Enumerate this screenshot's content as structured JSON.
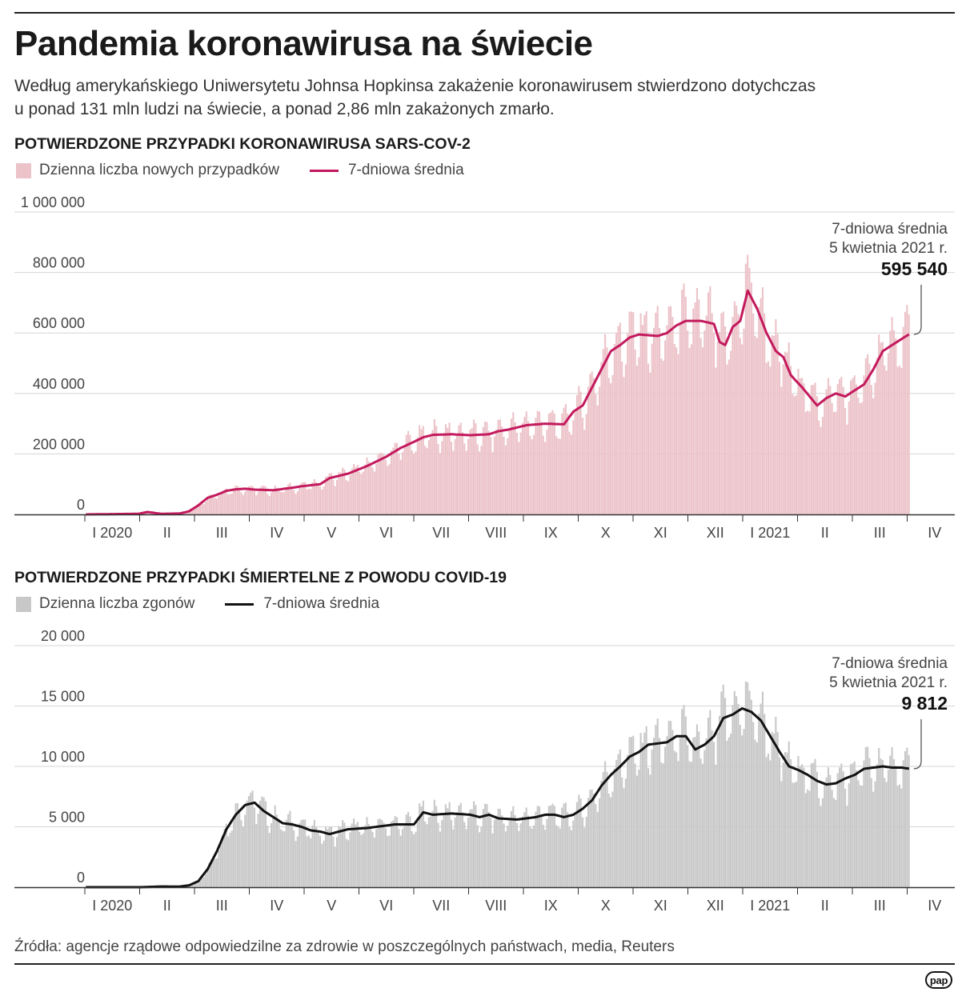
{
  "header": {
    "title": "Pandemia koronawirusa na świecie",
    "subtitle_line1": "Według amerykańskiego Uniwersytetu Johnsa Hopkinsa  zakażenie koronawirusem stwierdzono dotychczas",
    "subtitle_line2": "u ponad 131 mln ludzi na świecie, a ponad 2,86 mln zakażonych zmarło."
  },
  "cases_section": {
    "title": "POTWIERDZONE PRZYPADKI KORONAWIRUSA SARS-COV-2",
    "legend_bars": "Dzienna liczba nowych przypadków",
    "legend_line": "7-dniowa średnia"
  },
  "deaths_section": {
    "title": "POTWIERDZONE PRZYPADKI ŚMIERTELNE Z POWODU COVID-19",
    "legend_bars": "Dzienna liczba zgonów",
    "legend_line": "7-dniowa średnia"
  },
  "footer": {
    "source": "Źródła: agencje rządowe odpowiedzilne za zdrowie w poszczególnych państwach, media, Reuters",
    "logo_text": "pap"
  },
  "colors": {
    "cases_bar": "#ecc3c9",
    "cases_line": "#c3195d",
    "deaths_bar": "#c8c8c8",
    "deaths_line": "#111111",
    "grid": "#d6d6d6",
    "axis": "#333333"
  },
  "chart_data": [
    {
      "type": "bar",
      "title": "POTWIERDZONE PRZYPADKI KORONAWIRUSA SARS-COV-2",
      "series_bars_name": "Dzienna liczba nowych przypadków",
      "series_line_name": "7-dniowa średnia",
      "date_range": [
        "2020-01-22",
        "2021-04-05"
      ],
      "ylim": [
        0,
        1000000
      ],
      "yticks": [
        0,
        200000,
        400000,
        600000,
        800000,
        1000000
      ],
      "ytick_labels": [
        "0",
        "200 000",
        "400 000",
        "600 000",
        "800 000",
        "1 000 000"
      ],
      "month_labels": [
        "I 2020",
        "II",
        "III",
        "IV",
        "V",
        "VI",
        "VII",
        "VIII",
        "IX",
        "X",
        "XI",
        "XII",
        "I 2021",
        "II",
        "III",
        "IV"
      ],
      "annotation": {
        "line1": "7-dniowa średnia",
        "line2": "5 kwietnia 2021 r.",
        "value_label": "595 540",
        "value": 595540
      },
      "avg_keyframes_day_value": [
        [
          0,
          0
        ],
        [
          28,
          2000
        ],
        [
          33,
          8000
        ],
        [
          40,
          2000
        ],
        [
          50,
          3000
        ],
        [
          55,
          10000
        ],
        [
          60,
          30000
        ],
        [
          65,
          55000
        ],
        [
          70,
          65000
        ],
        [
          75,
          78000
        ],
        [
          80,
          83000
        ],
        [
          85,
          85000
        ],
        [
          90,
          82000
        ],
        [
          100,
          80000
        ],
        [
          110,
          88000
        ],
        [
          115,
          93000
        ],
        [
          125,
          100000
        ],
        [
          130,
          120000
        ],
        [
          140,
          135000
        ],
        [
          150,
          160000
        ],
        [
          160,
          190000
        ],
        [
          168,
          220000
        ],
        [
          175,
          240000
        ],
        [
          180,
          255000
        ],
        [
          185,
          263000
        ],
        [
          195,
          265000
        ],
        [
          205,
          262000
        ],
        [
          215,
          265000
        ],
        [
          220,
          275000
        ],
        [
          225,
          280000
        ],
        [
          235,
          295000
        ],
        [
          245,
          300000
        ],
        [
          255,
          298000
        ],
        [
          260,
          340000
        ],
        [
          265,
          360000
        ],
        [
          270,
          420000
        ],
        [
          275,
          480000
        ],
        [
          280,
          540000
        ],
        [
          285,
          560000
        ],
        [
          290,
          585000
        ],
        [
          295,
          595000
        ],
        [
          305,
          590000
        ],
        [
          310,
          600000
        ],
        [
          315,
          625000
        ],
        [
          320,
          640000
        ],
        [
          328,
          640000
        ],
        [
          335,
          630000
        ],
        [
          338,
          570000
        ],
        [
          341,
          560000
        ],
        [
          345,
          620000
        ],
        [
          349,
          640000
        ],
        [
          353,
          740000
        ],
        [
          358,
          680000
        ],
        [
          363,
          600000
        ],
        [
          368,
          540000
        ],
        [
          372,
          520000
        ],
        [
          376,
          460000
        ],
        [
          382,
          420000
        ],
        [
          386,
          390000
        ],
        [
          390,
          360000
        ],
        [
          395,
          385000
        ],
        [
          400,
          400000
        ],
        [
          405,
          390000
        ],
        [
          410,
          410000
        ],
        [
          415,
          430000
        ],
        [
          420,
          480000
        ],
        [
          425,
          540000
        ],
        [
          430,
          560000
        ],
        [
          435,
          580000
        ],
        [
          439,
          595540
        ]
      ],
      "bar_noise_amplitude_fraction": 0.14
    },
    {
      "type": "bar",
      "title": "POTWIERDZONE PRZYPADKI ŚMIERTELNE Z POWODU COVID-19",
      "series_bars_name": "Dzienna liczba zgonów",
      "series_line_name": "7-dniowa średnia",
      "date_range": [
        "2020-01-22",
        "2021-04-05"
      ],
      "ylim": [
        0,
        20000
      ],
      "yticks": [
        0,
        5000,
        10000,
        15000,
        20000
      ],
      "ytick_labels": [
        "0",
        "5 000",
        "10 000",
        "15 000",
        "20 000"
      ],
      "month_labels": [
        "I 2020",
        "II",
        "III",
        "IV",
        "V",
        "VI",
        "VII",
        "VIII",
        "IX",
        "X",
        "XI",
        "XII",
        "I 2021",
        "II",
        "III",
        "IV"
      ],
      "annotation": {
        "line1": "7-dniowa średnia",
        "line2": "5 kwietnia 2021 r.",
        "value_label": "9 812",
        "value": 9812
      },
      "avg_keyframes_day_value": [
        [
          0,
          0
        ],
        [
          30,
          0
        ],
        [
          40,
          60
        ],
        [
          50,
          50
        ],
        [
          55,
          150
        ],
        [
          60,
          500
        ],
        [
          65,
          1500
        ],
        [
          70,
          3000
        ],
        [
          75,
          4800
        ],
        [
          80,
          6000
        ],
        [
          85,
          6800
        ],
        [
          90,
          7000
        ],
        [
          95,
          6300
        ],
        [
          100,
          5800
        ],
        [
          105,
          5300
        ],
        [
          110,
          5200
        ],
        [
          115,
          5000
        ],
        [
          120,
          4700
        ],
        [
          125,
          4600
        ],
        [
          130,
          4400
        ],
        [
          135,
          4600
        ],
        [
          140,
          4800
        ],
        [
          150,
          4900
        ],
        [
          155,
          5000
        ],
        [
          160,
          5100
        ],
        [
          165,
          5200
        ],
        [
          175,
          5200
        ],
        [
          180,
          6200
        ],
        [
          185,
          6000
        ],
        [
          195,
          6100
        ],
        [
          205,
          6000
        ],
        [
          210,
          5800
        ],
        [
          215,
          6000
        ],
        [
          220,
          5700
        ],
        [
          230,
          5600
        ],
        [
          240,
          5800
        ],
        [
          245,
          6000
        ],
        [
          250,
          6000
        ],
        [
          255,
          5800
        ],
        [
          260,
          6000
        ],
        [
          265,
          6500
        ],
        [
          270,
          7200
        ],
        [
          275,
          8400
        ],
        [
          280,
          9300
        ],
        [
          285,
          10000
        ],
        [
          290,
          10800
        ],
        [
          295,
          11200
        ],
        [
          300,
          11800
        ],
        [
          310,
          12000
        ],
        [
          315,
          12500
        ],
        [
          320,
          12500
        ],
        [
          325,
          11400
        ],
        [
          330,
          11800
        ],
        [
          335,
          12500
        ],
        [
          340,
          14000
        ],
        [
          345,
          14300
        ],
        [
          350,
          14800
        ],
        [
          355,
          14500
        ],
        [
          360,
          13800
        ],
        [
          365,
          12500
        ],
        [
          370,
          11200
        ],
        [
          375,
          10000
        ],
        [
          380,
          9700
        ],
        [
          385,
          9300
        ],
        [
          390,
          8800
        ],
        [
          395,
          8500
        ],
        [
          400,
          8600
        ],
        [
          405,
          9000
        ],
        [
          410,
          9300
        ],
        [
          415,
          9800
        ],
        [
          420,
          9900
        ],
        [
          425,
          10000
        ],
        [
          430,
          9900
        ],
        [
          435,
          9900
        ],
        [
          439,
          9812
        ]
      ],
      "bar_noise_amplitude_fraction": 0.16
    }
  ]
}
